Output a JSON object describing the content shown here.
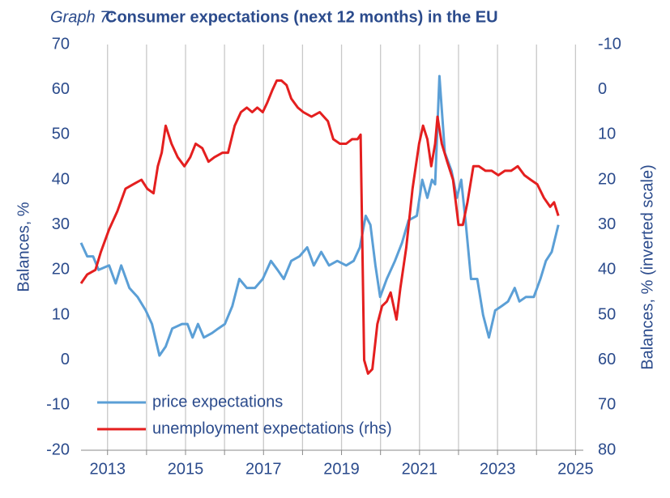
{
  "chart_data": {
    "type": "line",
    "title_label": "Graph 7:",
    "title": "Consumer expectations  (next 12 months) in the EU",
    "y_label": "Balances, %",
    "y2_label": "Balances, % (inverted scale)",
    "xlim": [
      2012.32,
      2025.2
    ],
    "xticks": [
      2013,
      {
        "value": 2014,
        "label": null
      },
      2015,
      {
        "value": 2016,
        "label": null
      },
      2017,
      {
        "value": 2018,
        "label": null
      },
      2019,
      {
        "value": 2020,
        "label": null
      },
      2021,
      {
        "value": 2022,
        "label": null
      },
      2023,
      {
        "value": 2024,
        "label": null
      },
      2025
    ],
    "ylim": [
      -20,
      70
    ],
    "yticks": [
      -20,
      -10,
      0,
      10,
      20,
      30,
      40,
      50,
      60,
      70
    ],
    "y2lim": [
      -10,
      80
    ],
    "y2ticks": [
      -10,
      0,
      10,
      20,
      30,
      40,
      50,
      60,
      70,
      80
    ],
    "y2_inverted": true,
    "grid": true,
    "legend": "lower left",
    "series": [
      {
        "name": "price expectations",
        "color": "#5b9fd6",
        "x": [
          2012.32,
          2012.48,
          2012.63,
          2012.77,
          2013.04,
          2013.21,
          2013.35,
          2013.56,
          2013.77,
          2013.98,
          2014.14,
          2014.33,
          2014.49,
          2014.66,
          2014.91,
          2015.05,
          2015.18,
          2015.32,
          2015.47,
          2015.68,
          2015.84,
          2016.01,
          2016.2,
          2016.38,
          2016.57,
          2016.78,
          2016.98,
          2017.19,
          2017.36,
          2017.52,
          2017.71,
          2017.92,
          2018.12,
          2018.29,
          2018.48,
          2018.68,
          2018.89,
          2019.12,
          2019.31,
          2019.47,
          2019.62,
          2019.74,
          2019.87,
          2019.99,
          2020.16,
          2020.37,
          2020.55,
          2020.72,
          2020.93,
          2021.07,
          2021.2,
          2021.32,
          2021.4,
          2021.51,
          2021.65,
          2021.82,
          2021.96,
          2022.07,
          2022.19,
          2022.32,
          2022.48,
          2022.63,
          2022.78,
          2022.94,
          2023.11,
          2023.27,
          2023.44,
          2023.56,
          2023.73,
          2023.93,
          2024.1,
          2024.24,
          2024.39,
          2024.56
        ],
        "values": [
          26,
          23,
          23,
          20,
          21,
          17,
          21,
          16,
          14,
          11,
          8,
          1,
          3,
          7,
          8,
          8,
          5,
          8,
          5,
          6,
          7,
          8,
          12,
          18,
          16,
          16,
          18,
          22,
          20,
          18,
          22,
          23,
          25,
          21,
          24,
          21,
          22,
          21,
          22,
          25,
          32,
          30,
          21,
          14,
          18,
          22,
          26,
          31,
          32,
          40,
          36,
          40,
          39,
          63,
          46,
          42,
          36,
          40,
          30,
          18,
          18,
          10,
          5,
          11,
          12,
          13,
          16,
          13,
          14,
          14,
          18,
          22,
          24,
          30
        ]
      },
      {
        "name": "unemployment expectations (rhs)",
        "color": "#e41f1f",
        "axis": "y2",
        "x": [
          2012.32,
          2012.48,
          2012.69,
          2012.83,
          2013.04,
          2013.25,
          2013.46,
          2013.66,
          2013.87,
          2014.02,
          2014.18,
          2014.29,
          2014.39,
          2014.49,
          2014.64,
          2014.8,
          2014.97,
          2015.12,
          2015.26,
          2015.43,
          2015.59,
          2015.74,
          2015.95,
          2016.09,
          2016.26,
          2016.42,
          2016.57,
          2016.71,
          2016.84,
          2016.98,
          2017.09,
          2017.23,
          2017.34,
          2017.46,
          2017.59,
          2017.71,
          2017.88,
          2018.02,
          2018.23,
          2018.44,
          2018.65,
          2018.79,
          2018.96,
          2019.12,
          2019.27,
          2019.41,
          2019.49,
          2019.58,
          2019.68,
          2019.79,
          2019.92,
          2020.04,
          2020.16,
          2020.26,
          2020.41,
          2020.51,
          2020.66,
          2020.82,
          2020.99,
          2021.09,
          2021.2,
          2021.3,
          2021.4,
          2021.46,
          2021.57,
          2021.71,
          2021.86,
          2022.0,
          2022.11,
          2022.23,
          2022.38,
          2022.52,
          2022.69,
          2022.85,
          2023.02,
          2023.19,
          2023.35,
          2023.52,
          2023.69,
          2023.85,
          2024.02,
          2024.19,
          2024.35,
          2024.45,
          2024.56
        ],
        "values": [
          43,
          41,
          40,
          36,
          31,
          27,
          22,
          21,
          20,
          22,
          23,
          17,
          14,
          8,
          12,
          15,
          17,
          15,
          12,
          13,
          16,
          15,
          14,
          14,
          8,
          5,
          4,
          5,
          4,
          5,
          3,
          0,
          -2,
          -2,
          -1,
          2,
          4,
          5,
          6,
          5,
          7,
          11,
          12,
          12,
          11,
          11,
          10,
          60,
          63,
          62,
          52,
          48,
          47,
          45,
          51,
          44,
          35,
          22,
          12,
          8,
          11,
          17,
          12,
          6,
          12,
          16,
          20,
          30,
          30,
          25,
          17,
          17,
          18,
          18,
          19,
          18,
          18,
          17,
          19,
          20,
          21,
          24,
          26,
          25,
          28
        ]
      }
    ]
  }
}
